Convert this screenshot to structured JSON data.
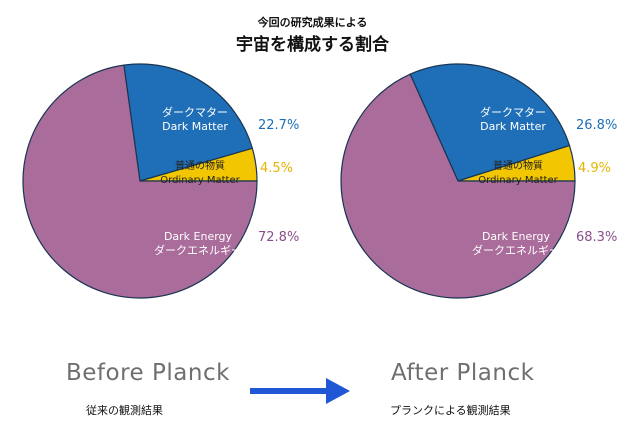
{
  "header": {
    "subtitle": "今回の研究成果による",
    "title": "宇宙を構成する割合"
  },
  "colors": {
    "dark_matter": "#1f6fb8",
    "ordinary_matter": "#f2c600",
    "dark_energy": "#a96c9b",
    "arrow": "#1f57d6"
  },
  "before": {
    "label": "Before Planck",
    "sublabel": "従来の観測結果"
  },
  "after": {
    "label": "After Planck",
    "sublabel": "プランクによる観測結果"
  },
  "arrow_icon": "right-arrow-icon",
  "chart_data": [
    {
      "type": "pie",
      "title": "Before Planck",
      "slices": [
        {
          "label_ja": "ダークマター",
          "label_en": "Dark Matter",
          "value": 22.7,
          "value_label": "22.7%",
          "color": "#1f6fb8"
        },
        {
          "label_ja": "普通の物質",
          "label_en": "Ordinary Matter",
          "value": 4.5,
          "value_label": "4.5%",
          "color": "#f2c600"
        },
        {
          "label_ja": "ダークエネルギー",
          "label_en": "Dark Energy",
          "value": 72.8,
          "value_label": "72.8%",
          "color": "#a96c9b"
        }
      ]
    },
    {
      "type": "pie",
      "title": "After Planck",
      "slices": [
        {
          "label_ja": "ダークマター",
          "label_en": "Dark Matter",
          "value": 26.8,
          "value_label": "26.8%",
          "color": "#1f6fb8"
        },
        {
          "label_ja": "普通の物質",
          "label_en": "Ordinary Matter",
          "value": 4.9,
          "value_label": "4.9%",
          "color": "#f2c600"
        },
        {
          "label_ja": "ダークエネルギー",
          "label_en": "Dark Energy",
          "value": 68.3,
          "value_label": "68.3%",
          "color": "#a96c9b"
        }
      ]
    }
  ]
}
